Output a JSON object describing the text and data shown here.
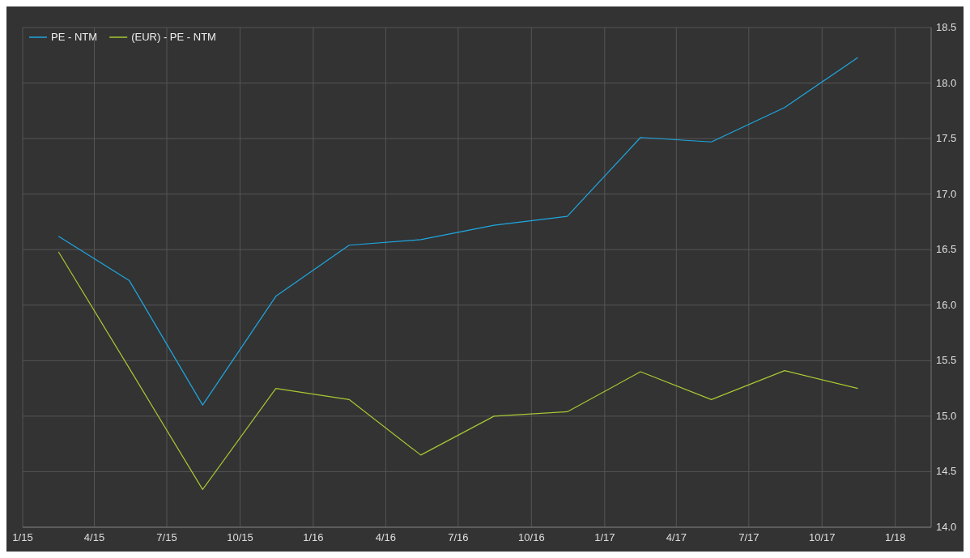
{
  "chart_data": {
    "type": "line",
    "x": [
      "2015-02-15",
      "2015-05-15",
      "2015-08-15",
      "2015-11-15",
      "2016-02-15",
      "2016-05-15",
      "2016-08-15",
      "2016-11-15",
      "2017-02-15",
      "2017-05-15",
      "2017-08-15",
      "2017-11-15"
    ],
    "series": [
      {
        "name": "PE - NTM",
        "color": "#1ea7e1",
        "values": [
          16.62,
          16.22,
          15.1,
          16.08,
          16.54,
          16.59,
          16.72,
          16.8,
          17.51,
          17.47,
          17.78,
          18.23
        ]
      },
      {
        "name": "(EUR) - PE - NTM",
        "color": "#a9c933",
        "values": [
          16.48,
          15.43,
          14.34,
          15.25,
          15.15,
          14.65,
          15.0,
          15.04,
          15.4,
          15.15,
          15.41,
          15.25
        ]
      }
    ],
    "xlim": [
      "2015-01-01",
      "2018-02-15"
    ],
    "xticks": [
      {
        "value": "2015-01-01",
        "label": "1/15"
      },
      {
        "value": "2015-04-01",
        "label": "4/15"
      },
      {
        "value": "2015-07-01",
        "label": "7/15"
      },
      {
        "value": "2015-10-01",
        "label": "10/15"
      },
      {
        "value": "2016-01-01",
        "label": "1/16"
      },
      {
        "value": "2016-04-01",
        "label": "4/16"
      },
      {
        "value": "2016-07-01",
        "label": "7/16"
      },
      {
        "value": "2016-10-01",
        "label": "10/16"
      },
      {
        "value": "2017-01-01",
        "label": "1/17"
      },
      {
        "value": "2017-04-01",
        "label": "4/17"
      },
      {
        "value": "2017-07-01",
        "label": "7/17"
      },
      {
        "value": "2017-10-01",
        "label": "10/17"
      },
      {
        "value": "2018-01-01",
        "label": "1/18"
      }
    ],
    "ylim": [
      14,
      18.5
    ],
    "yticks": [
      {
        "value": 14,
        "label": "14.0"
      },
      {
        "value": 14.5,
        "label": "14.5"
      },
      {
        "value": 15,
        "label": "15.0"
      },
      {
        "value": 15.5,
        "label": "15.5"
      },
      {
        "value": 16,
        "label": "16.0"
      },
      {
        "value": 16.5,
        "label": "16.5"
      },
      {
        "value": 17,
        "label": "17.0"
      },
      {
        "value": 17.5,
        "label": "17.5"
      },
      {
        "value": 18,
        "label": "18.0"
      },
      {
        "value": 18.5,
        "label": "18.5"
      }
    ],
    "grid": true,
    "legend": "top left",
    "marker": "none",
    "line_style": "solid"
  }
}
